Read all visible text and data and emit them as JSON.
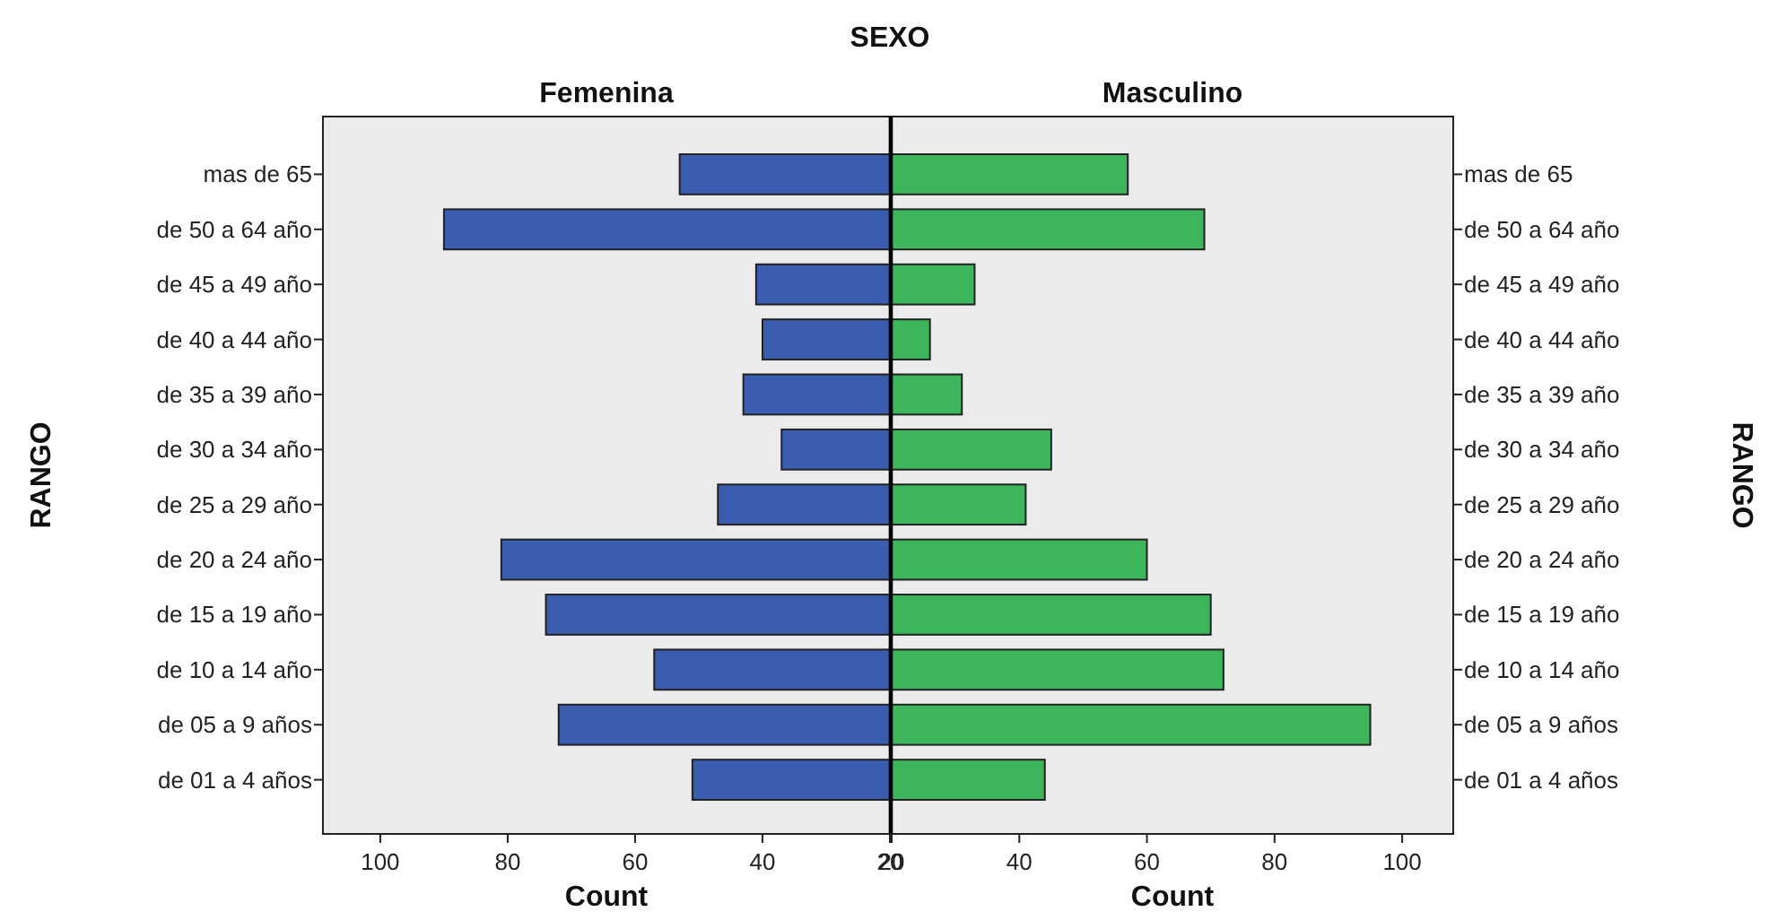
{
  "chart_data": [
    {
      "type": "bar",
      "orientation": "horizontal",
      "title": "Femenina",
      "annotations": [
        "SEXO"
      ],
      "xlabel": "Count",
      "ylabel": "RANGO",
      "categories": [
        "mas de 65",
        "de 50 a 64 año",
        "de 45 a 49 año",
        "de 40 a 44 año",
        "de 35 a 39 año",
        "de 30 a 34 año",
        "de 25 a 29 año",
        "de 20 a 24 año",
        "de 15 a 19 año",
        "de 10 a 14 año",
        "de 05 a 9 años",
        "de 01 a 4 años"
      ],
      "values": [
        53,
        90,
        41,
        40,
        43,
        37,
        47,
        81,
        74,
        57,
        72,
        51
      ],
      "color": "#3a5db0",
      "xlim": [
        109,
        20
      ],
      "xticks": [
        100,
        80,
        60,
        40,
        20
      ],
      "grid": false
    },
    {
      "type": "bar",
      "orientation": "horizontal",
      "title": "Masculino",
      "xlabel": "Count",
      "ylabel": "RANGO",
      "categories": [
        "mas de 65",
        "de 50 a 64 año",
        "de 45 a 49 año",
        "de 40 a 44 año",
        "de 35 a 39 año",
        "de 30 a 34 año",
        "de 25 a 29 año",
        "de 20 a 24 año",
        "de 15 a 19 año",
        "de 10 a 14 año",
        "de 05 a 9 años",
        "de 01 a 4 años"
      ],
      "values": [
        57,
        69,
        33,
        26,
        31,
        45,
        41,
        60,
        70,
        72,
        95,
        44
      ],
      "color": "#3db55a",
      "xlim": [
        20,
        108
      ],
      "xticks": [
        20,
        40,
        60,
        80,
        100
      ],
      "grid": false
    }
  ]
}
